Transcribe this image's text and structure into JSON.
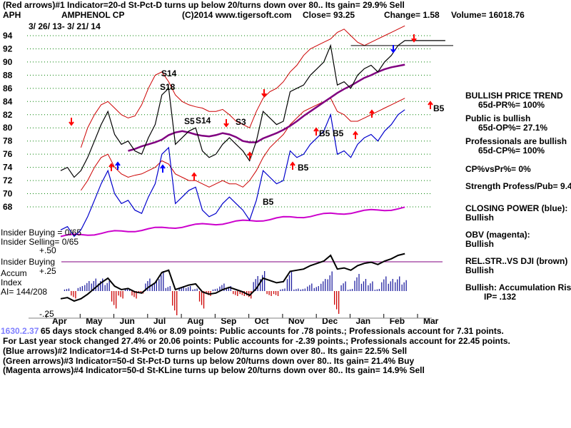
{
  "header": {
    "line1": "(Red arrows)#1 Indicator=20-d St-Pct-D turns up below 20/turns down over 80.. Its gain= 29.9% Sell",
    "ticker": "APH",
    "company": "AMPHENOL CP",
    "copyright": "(C)2014 www.tigersoft.com",
    "close": "Close=   93.25",
    "change": "Change= 1.58",
    "volume": "Volume= 16018.76",
    "date_range": "3/ 26/ 13-  3/ 21/ 14"
  },
  "left_labels": {
    "insider_buying": "Insider Buying = 0/65",
    "insider_selling": "Insider Selling= 0/65",
    "plus50": "+.50",
    "insider_buying2": "Insider Buying",
    "accum": "Accum",
    "plus25": "+.25",
    "index": "Index",
    "ai": "AI= 144/208",
    "minus25": "-.25"
  },
  "panel": {
    "t1": "BULLISH PRICE TREND",
    "t2": "65d-PR%= 100%",
    "t3": "Public is bullish",
    "t4": "65d-OP%= 27.1%",
    "t5": "Professionals are bullish",
    "t6": "65d-CP%= 100%",
    "t7": "CP%vsPr%=  0%",
    "t8": "Strength Profess/Pub= 9.4",
    "t9": "CLOSING POWER (blue):",
    "t10": "Bullish",
    "t11": "OBV (magenta):",
    "t12": "Bullish",
    "t13": "REL.STR..VS DJI (brown)",
    "t14": "Bullish",
    "t15": "Bullish: Accumulation Rising",
    "t16": "IP=  .132"
  },
  "footer": {
    "f1": "65 days stock changed  8.4% or  8.09 points:  Public accounts for  .78 points.;  Professionals account for  7.31 points.",
    "f1_overlap": "1630.2.37",
    "f2": "For Last year stock changed  27.4% or  20.06 points:  Public accounts for -2.39 points.;  Professionals account for  22.45 points.",
    "f3": "(Blue arrows)#2 Indicator=14-d St-Pct-D turns up below 20/turns down over 80.. Its gain= 22.5% Sell",
    "f4": "(Green arrows)#3 Indicator=50-d St-Pct-D turns up below 20/turns down over 80.. Its gain= 21.4% Buy",
    "f5": "(Magenta arrows)#4 Indicator=50-d St-KLine turns up below 20/turns down over 80.. Its gain= 14.9% Sell"
  },
  "colors": {
    "price": "#000000",
    "band": "#cc0000",
    "ma": "#800080",
    "closing_power": "#0000cc",
    "obv": "#cc00cc",
    "accum_pos": "#2020a0",
    "accum_neg": "#cc0000",
    "grid": "#008000",
    "arrow_red": "#ff0000",
    "arrow_blue": "#0000ff"
  },
  "chart_data": {
    "type": "line",
    "title": "AMPHENOL CP",
    "ylim": [
      68,
      94
    ],
    "yticks": [
      68,
      70,
      72,
      74,
      76,
      78,
      80,
      82,
      84,
      86,
      88,
      90,
      92,
      94
    ],
    "months": [
      "Apr",
      "May",
      "Jun",
      "Jul",
      "Aug",
      "Sep",
      "Oct",
      "Nov",
      "Dec",
      "Jan",
      "Feb",
      "Mar"
    ],
    "x": [
      0,
      0.2,
      0.4,
      0.6,
      0.8,
      1.0,
      1.2,
      1.4,
      1.6,
      1.8,
      2.0,
      2.2,
      2.4,
      2.6,
      2.8,
      3.0,
      3.2,
      3.4,
      3.6,
      3.8,
      4.0,
      4.2,
      4.4,
      4.6,
      4.8,
      5.0,
      5.2,
      5.4,
      5.6,
      5.8,
      6.0,
      6.2,
      6.4,
      6.6,
      6.8,
      7.0,
      7.2,
      7.4,
      7.6,
      7.8,
      8.0,
      8.2,
      8.4,
      8.6,
      8.8,
      9.0,
      9.2,
      9.4,
      9.6,
      9.8,
      10.0,
      10.2,
      10.4,
      10.6,
      10.8,
      11.0,
      11.2,
      11.4
    ],
    "price": [
      73.5,
      74.0,
      72.5,
      73.5,
      75.5,
      78.0,
      80.5,
      82.5,
      79.0,
      77.5,
      78.0,
      76.5,
      76.0,
      78.5,
      80.5,
      85.0,
      86.0,
      77.5,
      78.5,
      79.5,
      80.0,
      76.5,
      75.5,
      76.0,
      77.5,
      78.5,
      77.5,
      76.5,
      75.0,
      78.0,
      82.5,
      81.5,
      80.5,
      81.0,
      85.5,
      86.0,
      86.5,
      88.0,
      89.0,
      90.0,
      92.5,
      86.5,
      87.0,
      86.0,
      88.0,
      89.0,
      89.5,
      88.5,
      90.0,
      91.0,
      92.5,
      93.25,
      93.25,
      93.25,
      93.25,
      93.25,
      93.25,
      93.25
    ],
    "ma50": [
      null,
      null,
      null,
      null,
      null,
      null,
      null,
      null,
      null,
      null,
      76.5,
      76.8,
      77.2,
      77.5,
      77.8,
      78.2,
      78.9,
      79.3,
      79.5,
      79.3,
      79.0,
      78.8,
      78.7,
      78.9,
      79.2,
      79.0,
      78.6,
      78.0,
      77.8,
      77.8,
      78.4,
      78.8,
      79.2,
      79.7,
      80.3,
      81.0,
      81.8,
      82.5,
      83.2,
      83.9,
      84.6,
      85.3,
      85.9,
      86.4,
      87.0,
      87.6,
      88.0,
      88.5,
      88.9,
      89.2,
      89.4,
      89.6,
      null,
      null,
      null,
      null,
      null,
      null
    ],
    "band_upper": [
      null,
      null,
      null,
      77.0,
      80.0,
      82.0,
      83.5,
      84.0,
      83.0,
      82.0,
      81.5,
      81.8,
      83.5,
      86.0,
      88.0,
      88.5,
      87.0,
      85.0,
      84.0,
      83.5,
      83.2,
      83.0,
      82.5,
      82.5,
      82.8,
      82.0,
      81.0,
      80.5,
      80.0,
      82.5,
      84.5,
      85.5,
      86.0,
      87.0,
      88.5,
      89.5,
      91.0,
      92.0,
      92.5,
      93.0,
      93.5,
      94.5,
      95.0,
      94.0,
      93.0,
      92.5,
      93.0,
      93.5,
      94.0,
      94.5,
      95.0,
      95.5,
      null,
      null,
      null,
      null,
      null,
      null
    ],
    "band_lower": [
      null,
      null,
      null,
      70.5,
      72.0,
      74.0,
      75.5,
      76.0,
      74.0,
      73.0,
      72.5,
      72.8,
      73.0,
      73.5,
      74.0,
      75.0,
      74.5,
      73.0,
      72.5,
      72.0,
      72.0,
      71.5,
      71.0,
      71.5,
      72.0,
      71.5,
      71.5,
      71.0,
      72.0,
      73.5,
      75.5,
      77.0,
      78.0,
      79.0,
      80.5,
      81.5,
      82.5,
      83.0,
      83.5,
      84.0,
      84.5,
      82.5,
      82.0,
      81.0,
      81.0,
      81.5,
      82.0,
      82.5,
      83.0,
      83.5,
      84.0,
      84.5,
      null,
      null,
      null,
      null,
      null,
      null
    ],
    "signals": [
      {
        "label": "S14",
        "month_index": 3,
        "price": 88.0
      },
      {
        "label": "S18",
        "month_index": 3,
        "price": 86.0
      },
      {
        "label": "S5",
        "month_index": 4,
        "price": 81.0
      },
      {
        "label": "S14",
        "month_index": 4,
        "price": 81.0
      },
      {
        "label": "S3",
        "month_index": 5,
        "price": 80.5
      },
      {
        "label": "B5",
        "month_index": 7,
        "price": 79.0
      },
      {
        "label": "B5",
        "month_index": 7,
        "price": 79.0
      },
      {
        "label": "B5",
        "month_index": 7,
        "price": 74.0
      },
      {
        "label": "B5",
        "month_index": 6,
        "price": 68.0
      },
      {
        "label": "B5",
        "month_index": 11,
        "price": 83.0
      }
    ],
    "resistance": 92.5
  }
}
